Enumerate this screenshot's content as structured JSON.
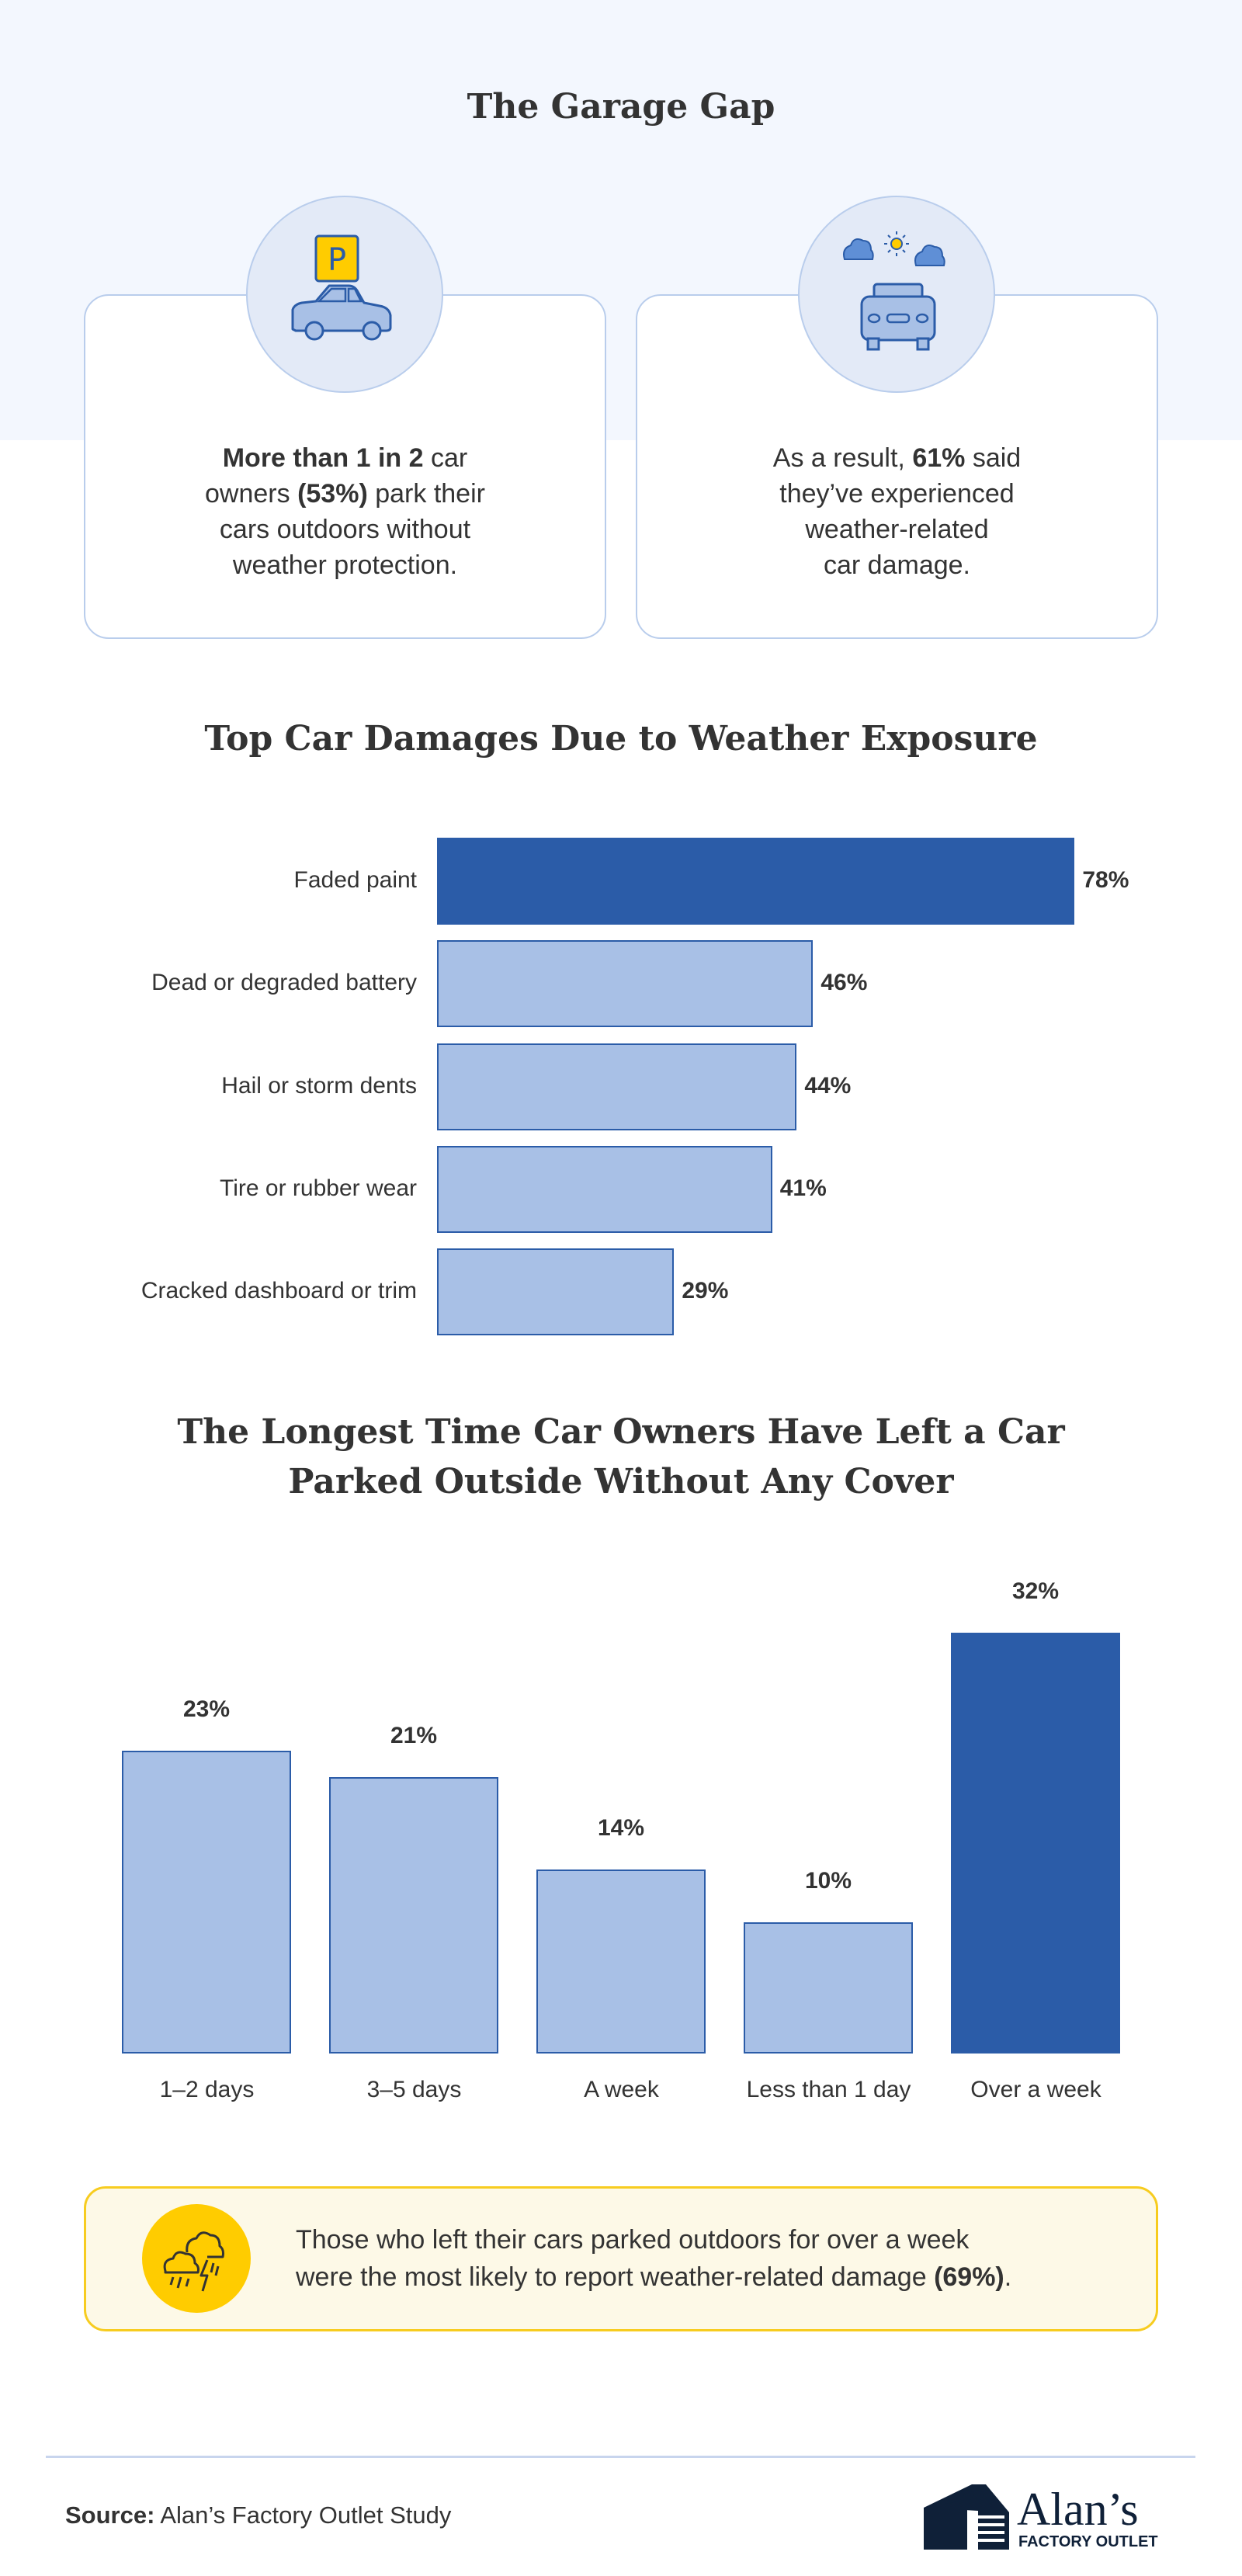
{
  "header": {
    "title": "The Garage Gap"
  },
  "cards": [
    {
      "icon": "parking-car-icon",
      "lines": [
        [
          {
            "t": "More than 1 in 2",
            "b": true
          },
          {
            "t": " car",
            "b": false
          }
        ],
        [
          {
            "t": "owners ",
            "b": false
          },
          {
            "t": "(53%)",
            "b": true
          },
          {
            "t": " park their",
            "b": false
          }
        ],
        [
          {
            "t": "cars outdoors without",
            "b": false
          }
        ],
        [
          {
            "t": "weather protection.",
            "b": false
          }
        ]
      ]
    },
    {
      "icon": "weather-car-icon",
      "lines": [
        [
          {
            "t": "As a result, ",
            "b": false
          },
          {
            "t": "61%",
            "b": true
          },
          {
            "t": " said",
            "b": false
          }
        ],
        [
          {
            "t": "they’ve experienced",
            "b": false
          }
        ],
        [
          {
            "t": "weather-related",
            "b": false
          }
        ],
        [
          {
            "t": "car damage.",
            "b": false
          }
        ]
      ]
    }
  ],
  "chart_data": [
    {
      "type": "bar",
      "orientation": "horizontal",
      "title": "Top Car Damages Due to Weather Exposure",
      "categories": [
        "Faded paint",
        "Dead or degraded battery",
        "Hail or storm dents",
        "Tire or rubber wear",
        "Cracked dashboard or trim"
      ],
      "values": [
        78,
        46,
        44,
        41,
        29
      ],
      "value_labels": [
        "78%",
        "46%",
        "44%",
        "41%",
        "29%"
      ],
      "highlight_index": 0,
      "grid": false
    },
    {
      "type": "bar",
      "orientation": "vertical",
      "title": "The Longest Time Car Owners Have Left a Car Parked Outside Without Any Cover",
      "title_lines": [
        "The Longest Time Car Owners Have Left a Car",
        "Parked Outside Without Any Cover"
      ],
      "categories": [
        "1–2 days",
        "3–5 days",
        "A week",
        "Less than 1 day",
        "Over a week"
      ],
      "values": [
        23,
        21,
        14,
        10,
        32
      ],
      "value_labels": [
        "23%",
        "21%",
        "14%",
        "10%",
        "32%"
      ],
      "highlight_index": 4,
      "grid": false
    }
  ],
  "colors": {
    "highlight": "#2b5ca8",
    "bar": "#a8c0e6",
    "bar_border": "#2b5ca8",
    "band": "#f3f7fe",
    "callout_bg": "#fdf9e7",
    "callout_border": "#f7cc1f",
    "accent_yellow": "#ffcc00"
  },
  "callout": {
    "icon": "storm-cloud-icon",
    "line1": "Those who left their cars parked outdoors for over a week",
    "line2_prefix": "were the most likely to report weather-related damage ",
    "line2_bold": "(69%)",
    "line2_suffix": "."
  },
  "footer": {
    "source_label": "Source:",
    "source_text": " Alan’s Factory Outlet Study",
    "logo_text": "Alan’s",
    "logo_sub": "FACTORY OUTLET"
  }
}
